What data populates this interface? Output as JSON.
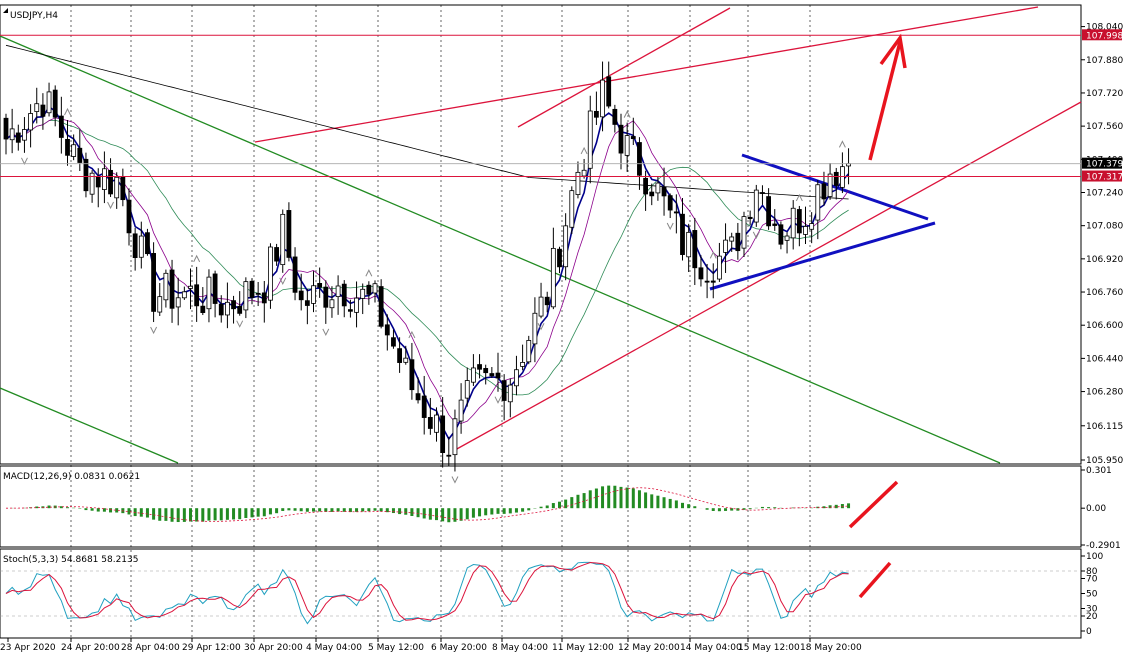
{
  "chart_data": [
    {
      "type": "candlestick",
      "title": "USDJPY,H4",
      "ylim": [
        105.95,
        108.12
      ],
      "y_ticks": [
        "108.040",
        "107.880",
        "107.720",
        "107.560",
        "107.400",
        "107.240",
        "107.080",
        "106.920",
        "106.760",
        "106.600",
        "106.440",
        "106.280",
        "106.115",
        "105.950"
      ],
      "price_tags": [
        {
          "text": "107.998",
          "value": 107.998,
          "color": "#c8102e"
        },
        {
          "text": "107.379",
          "value": 107.379,
          "color": "#000000"
        },
        {
          "text": "107.317",
          "value": 107.317,
          "color": "#c8102e"
        }
      ],
      "x_ticks": [
        "23 Apr 2020",
        "24 Apr 20:00",
        "28 Apr 04:00",
        "29 Apr 12:00",
        "30 Apr 20:00",
        "4 May 04:00",
        "5 May 12:00",
        "6 May 20:00",
        "8 May 04:00",
        "11 May 12:00",
        "12 May 20:00",
        "14 May 04:00",
        "15 May 12:00",
        "18 May 20:00"
      ],
      "anchors": [
        {
          "bar": 0,
          "close": 107.5
        },
        {
          "bar": 6,
          "close": 107.7
        },
        {
          "bar": 12,
          "close": 107.35
        },
        {
          "bar": 18,
          "close": 107.3
        },
        {
          "bar": 24,
          "close": 106.75
        },
        {
          "bar": 30,
          "close": 106.75
        },
        {
          "bar": 36,
          "close": 106.7
        },
        {
          "bar": 42,
          "close": 106.8
        },
        {
          "bar": 45,
          "close": 107.05
        },
        {
          "bar": 48,
          "close": 106.7
        },
        {
          "bar": 54,
          "close": 106.8
        },
        {
          "bar": 60,
          "close": 106.7
        },
        {
          "bar": 66,
          "close": 106.3
        },
        {
          "bar": 72,
          "close": 106.02
        },
        {
          "bar": 76,
          "close": 106.3
        },
        {
          "bar": 82,
          "close": 106.35
        },
        {
          "bar": 88,
          "close": 106.75
        },
        {
          "bar": 93,
          "close": 107.35
        },
        {
          "bar": 97,
          "close": 107.7
        },
        {
          "bar": 101,
          "close": 107.45
        },
        {
          "bar": 105,
          "close": 107.3
        },
        {
          "bar": 110,
          "close": 107.0
        },
        {
          "bar": 114,
          "close": 106.9
        },
        {
          "bar": 118,
          "close": 106.95
        },
        {
          "bar": 122,
          "close": 107.3
        },
        {
          "bar": 126,
          "close": 107.05
        },
        {
          "bar": 130,
          "close": 107.15
        },
        {
          "bar": 134,
          "close": 107.35
        },
        {
          "bar": 137,
          "close": 107.379
        }
      ]
    },
    {
      "type": "bar",
      "title": "MACD(12,26,9) 0.0831 0.0621",
      "ylim": [
        -0.2901,
        0.301
      ],
      "y_ticks": [
        "0.301",
        "0.00",
        "-0.2901"
      ]
    },
    {
      "type": "line",
      "title": "Stoch(5,3,3) 54.8681 58.2135",
      "ylim": [
        0,
        100
      ],
      "y_ticks": [
        "100",
        "80",
        "70",
        "50",
        "30",
        "20",
        "0"
      ]
    }
  ],
  "colors": {
    "up_candle": "#ffffff",
    "down_candle": "#000000",
    "ma_fast": "#00008b",
    "ma_mid": "#8b008b",
    "ma_slow": "#2e8b57",
    "ma_long": "#000000",
    "trendline_red": "#dc143c",
    "channel_green": "#228b22",
    "triangle_blue": "#1010c0",
    "macd_hist": "#228b22",
    "macd_signal": "#dc143c",
    "stoch_main": "#20a0c0",
    "stoch_signal": "#dc143c"
  }
}
